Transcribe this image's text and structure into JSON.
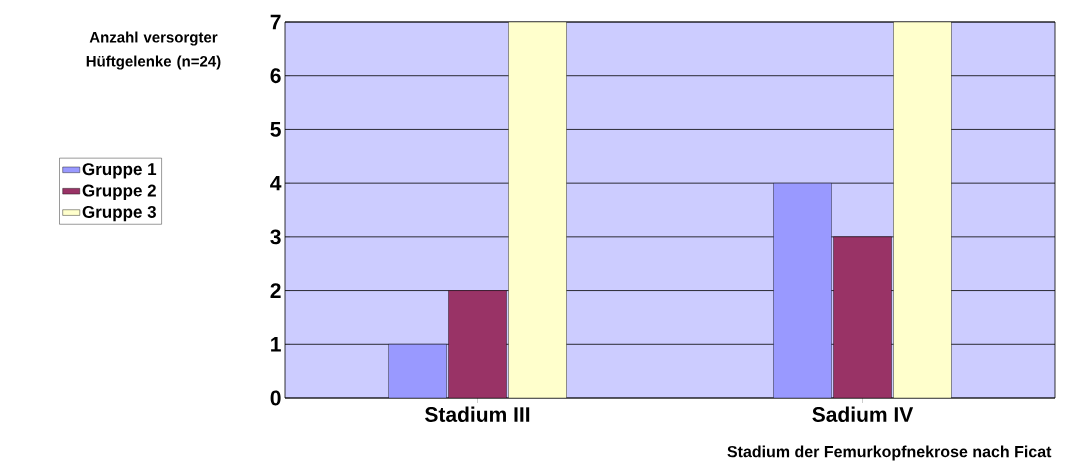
{
  "chart_data": {
    "type": "bar",
    "xlabel": "Stadium der Femurkopfnekrose nach Ficat",
    "ylabel": "Anzahl versorgter Hüftgelenke (n=24)",
    "categories": [
      "Stadium III",
      "Sadium IV"
    ],
    "series": [
      {
        "name": "Gruppe 1",
        "color": "#9999ff",
        "values": [
          1,
          4
        ]
      },
      {
        "name": "Gruppe 2",
        "color": "#993366",
        "values": [
          2,
          3
        ]
      },
      {
        "name": "Gruppe 3",
        "color": "#ffffcc",
        "values": [
          7,
          7
        ]
      }
    ],
    "ylim": [
      0,
      7
    ],
    "yticks": [
      0,
      1,
      2,
      3,
      4,
      5,
      6,
      7
    ],
    "grid": "y",
    "legend": "left"
  }
}
